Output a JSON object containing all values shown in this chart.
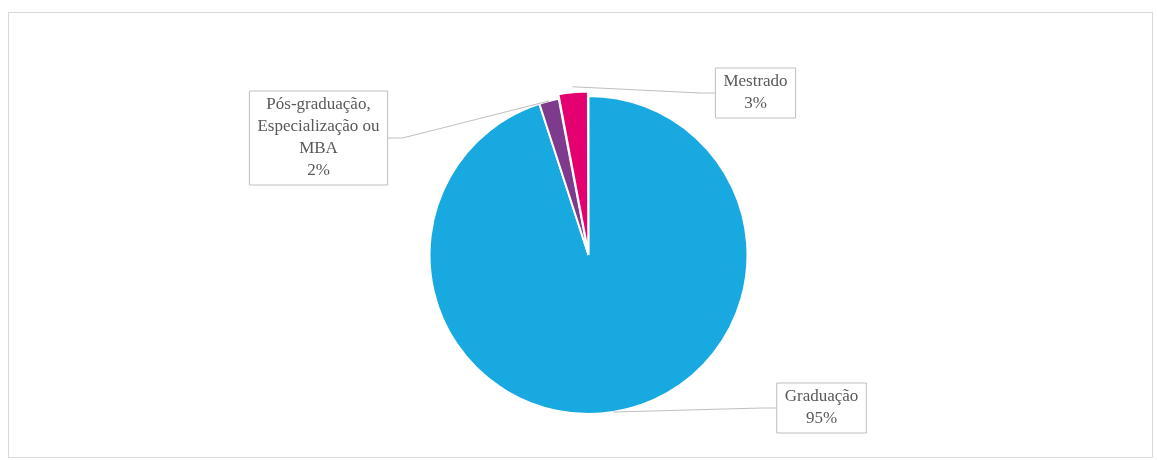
{
  "chart_data": {
    "type": "pie",
    "categories": [
      "Graduação",
      "Pós-graduação, Especialização ou MBA",
      "Mestrado"
    ],
    "values": [
      95,
      2,
      3
    ],
    "value_labels": [
      "95%",
      "2%",
      "3%"
    ],
    "colors": [
      "#17a9e0",
      "#7e3a8c",
      "#e4006e"
    ],
    "legend": false
  }
}
